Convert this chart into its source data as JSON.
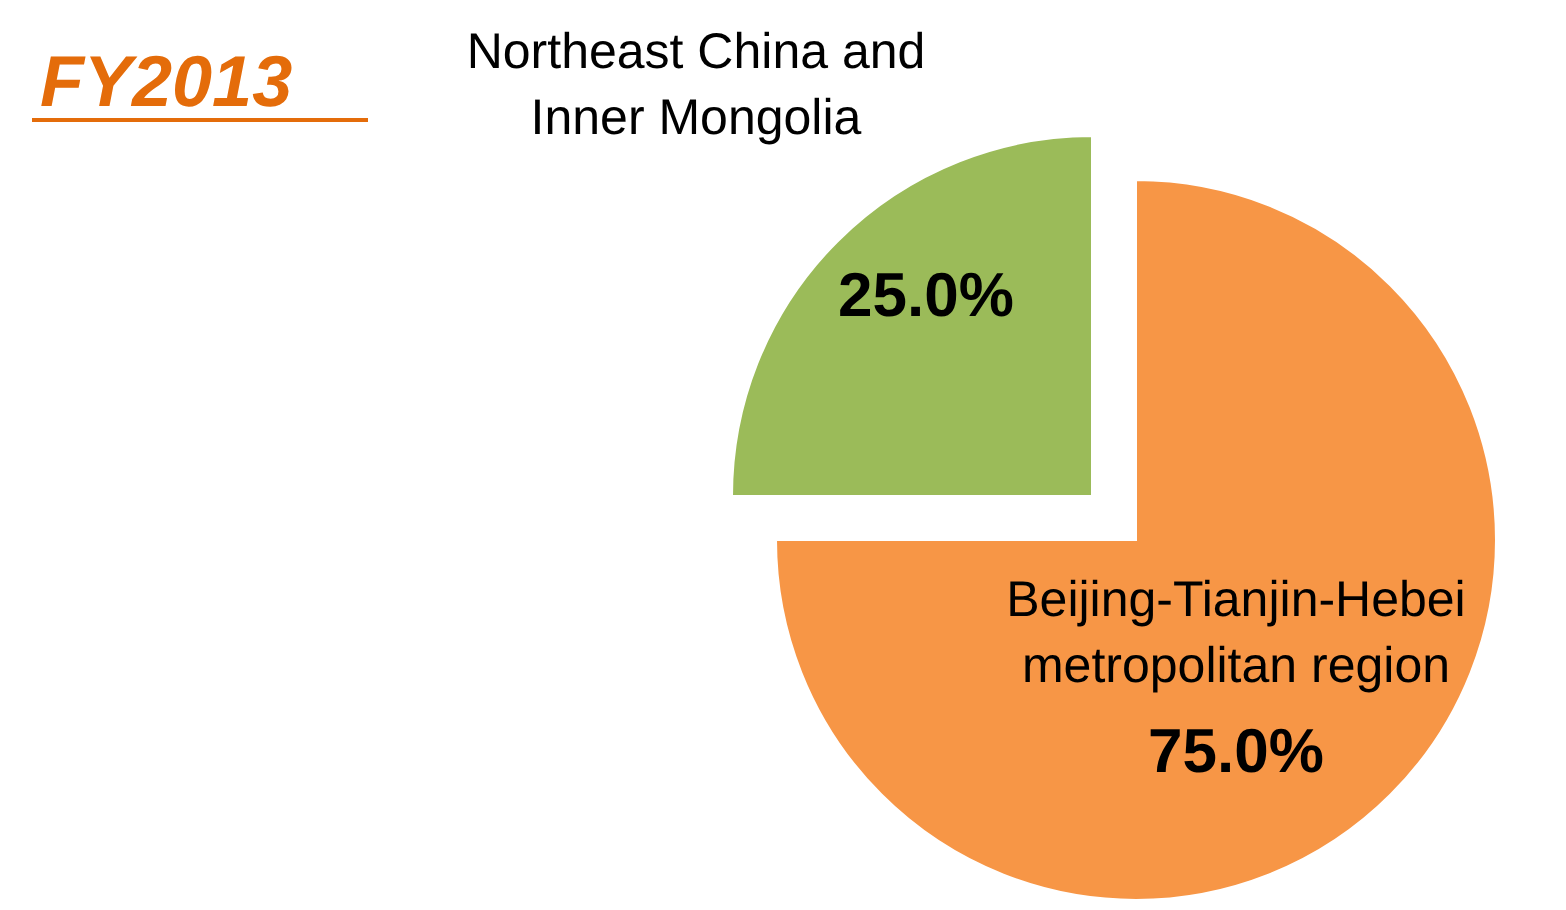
{
  "chart_data": {
    "type": "pie",
    "title": "FY2013",
    "categories": [
      "Northeast China and Inner Mongolia",
      "Beijing-Tianjin-Hebei metropolitan region"
    ],
    "values": [
      25,
      75
    ],
    "colors": [
      "#9bbb59",
      "#f79646"
    ],
    "value_labels": [
      "25.0%",
      "75.0%"
    ]
  }
}
